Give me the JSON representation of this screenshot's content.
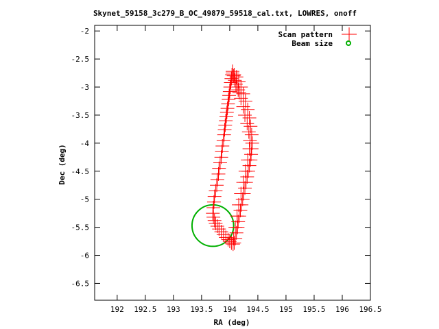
{
  "chart_data": {
    "type": "scatter",
    "title": "Skynet_59158_3c279_B_OC_49879_59518_cal.txt, LOWRES, onoff",
    "xlabel": "RA (deg)",
    "ylabel": "Dec (deg)",
    "xlim": [
      191.6,
      196.5
    ],
    "ylim": [
      -6.8,
      -1.9
    ],
    "xticks": [
      192,
      192.5,
      193,
      193.5,
      194,
      194.5,
      195,
      195.5,
      196,
      196.5
    ],
    "xtick_labels": [
      "192",
      "192.5",
      "193",
      "193.5",
      "194",
      "194.5",
      "195",
      "195.5",
      "196",
      "196.5"
    ],
    "yticks": [
      -2,
      -2.5,
      -3,
      -3.5,
      -4,
      -4.5,
      -5,
      -5.5,
      -6,
      -6.5
    ],
    "ytick_labels": [
      "-2",
      "-2.5",
      "-3",
      "-3.5",
      "-4",
      "-4.5",
      "-5",
      "-5.5",
      "-6",
      "-6.5"
    ],
    "grid": false,
    "legend_position": "top-right",
    "series": [
      {
        "name": "Scan pattern",
        "marker": "plus",
        "color": "#ff0000",
        "x": [
          194.05,
          194.04,
          194.03,
          194.02,
          194.01,
          194.0,
          193.99,
          193.98,
          193.97,
          193.96,
          193.95,
          193.94,
          193.93,
          193.92,
          193.91,
          193.9,
          193.89,
          193.87,
          193.86,
          193.85,
          193.83,
          193.81,
          193.8,
          193.78,
          193.77,
          193.75,
          193.73,
          193.72,
          193.71,
          193.7,
          193.71,
          193.73,
          193.75,
          193.78,
          193.81,
          193.85,
          193.89,
          193.93,
          193.97,
          194.0,
          194.03,
          194.06,
          194.08,
          194.1,
          194.12,
          194.14,
          194.15,
          194.17,
          194.19,
          194.21,
          194.23,
          194.25,
          194.27,
          194.29,
          194.31,
          194.33,
          194.35,
          194.37,
          194.38,
          194.39,
          194.4,
          194.39,
          194.37,
          194.35,
          194.32,
          194.28,
          194.24,
          194.2,
          194.16,
          194.12,
          194.08,
          194.05,
          194.07,
          194.09,
          194.11,
          194.13,
          194.15,
          194.17,
          194.2,
          194.24,
          194.27,
          194.31,
          194.34,
          194.36,
          194.35,
          194.32,
          194.28,
          194.24,
          194.2,
          194.16,
          194.13,
          194.1,
          194.07
        ],
        "y": [
          -2.72,
          -2.78,
          -2.85,
          -2.92,
          -3.0,
          -3.08,
          -3.15,
          -3.22,
          -3.3,
          -3.38,
          -3.45,
          -3.52,
          -3.6,
          -3.68,
          -3.76,
          -3.85,
          -3.95,
          -4.05,
          -4.15,
          -4.25,
          -4.35,
          -4.45,
          -4.55,
          -4.65,
          -4.75,
          -4.85,
          -4.95,
          -5.05,
          -5.15,
          -5.25,
          -5.32,
          -5.38,
          -5.43,
          -5.48,
          -5.53,
          -5.58,
          -5.63,
          -5.68,
          -5.72,
          -5.75,
          -5.78,
          -5.8,
          -5.78,
          -5.7,
          -5.6,
          -5.5,
          -5.4,
          -5.3,
          -5.2,
          -5.1,
          -5.0,
          -4.9,
          -4.8,
          -4.7,
          -4.6,
          -4.5,
          -4.4,
          -4.3,
          -4.2,
          -4.1,
          -4.0,
          -3.85,
          -3.7,
          -3.55,
          -3.4,
          -3.25,
          -3.12,
          -3.0,
          -2.9,
          -2.82,
          -2.78,
          -2.75,
          -2.8,
          -2.88,
          -2.95,
          -3.0,
          -3.05,
          -3.1,
          -3.2,
          -3.35,
          -3.5,
          -3.65,
          -3.8,
          -3.95,
          -4.1,
          -4.3,
          -4.5,
          -4.7,
          -4.9,
          -5.1,
          -5.3,
          -5.5,
          -5.7
        ]
      },
      {
        "name": "Beam size",
        "marker": "circle",
        "color": "#00b000",
        "center": [
          193.7,
          -5.47
        ],
        "radius": 0.37
      }
    ]
  }
}
